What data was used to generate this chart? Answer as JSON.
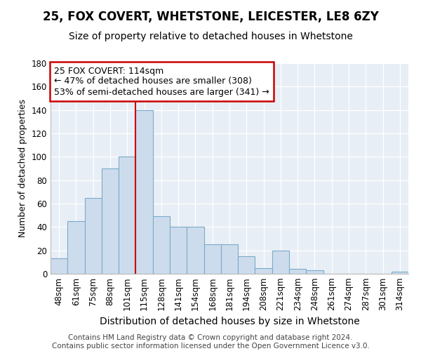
{
  "title1": "25, FOX COVERT, WHETSTONE, LEICESTER, LE8 6ZY",
  "title2": "Size of property relative to detached houses in Whetstone",
  "xlabel": "Distribution of detached houses by size in Whetstone",
  "ylabel": "Number of detached properties",
  "categories": [
    "48sqm",
    "61sqm",
    "75sqm",
    "88sqm",
    "101sqm",
    "115sqm",
    "128sqm",
    "141sqm",
    "154sqm",
    "168sqm",
    "181sqm",
    "194sqm",
    "208sqm",
    "221sqm",
    "234sqm",
    "248sqm",
    "261sqm",
    "274sqm",
    "287sqm",
    "301sqm",
    "314sqm"
  ],
  "values": [
    13,
    45,
    65,
    90,
    100,
    140,
    49,
    40,
    40,
    25,
    25,
    15,
    5,
    20,
    4,
    3,
    0,
    0,
    0,
    0,
    2
  ],
  "bar_color": "#cddcec",
  "bar_edge_color": "#7aaacb",
  "vline_index": 5,
  "vline_color": "#cc0000",
  "annotation_text": "25 FOX COVERT: 114sqm\n← 47% of detached houses are smaller (308)\n53% of semi-detached houses are larger (341) →",
  "annotation_box_facecolor": "#ffffff",
  "annotation_box_edgecolor": "#cc0000",
  "ylim": [
    0,
    180
  ],
  "yticks": [
    0,
    20,
    40,
    60,
    80,
    100,
    120,
    140,
    160,
    180
  ],
  "background_color": "#e8eef5",
  "grid_color": "#ffffff",
  "footer_text": "Contains HM Land Registry data © Crown copyright and database right 2024.\nContains public sector information licensed under the Open Government Licence v3.0.",
  "title1_fontsize": 12,
  "title2_fontsize": 10,
  "xlabel_fontsize": 10,
  "ylabel_fontsize": 9,
  "tick_fontsize": 8.5,
  "annotation_fontsize": 9,
  "footer_fontsize": 7.5
}
